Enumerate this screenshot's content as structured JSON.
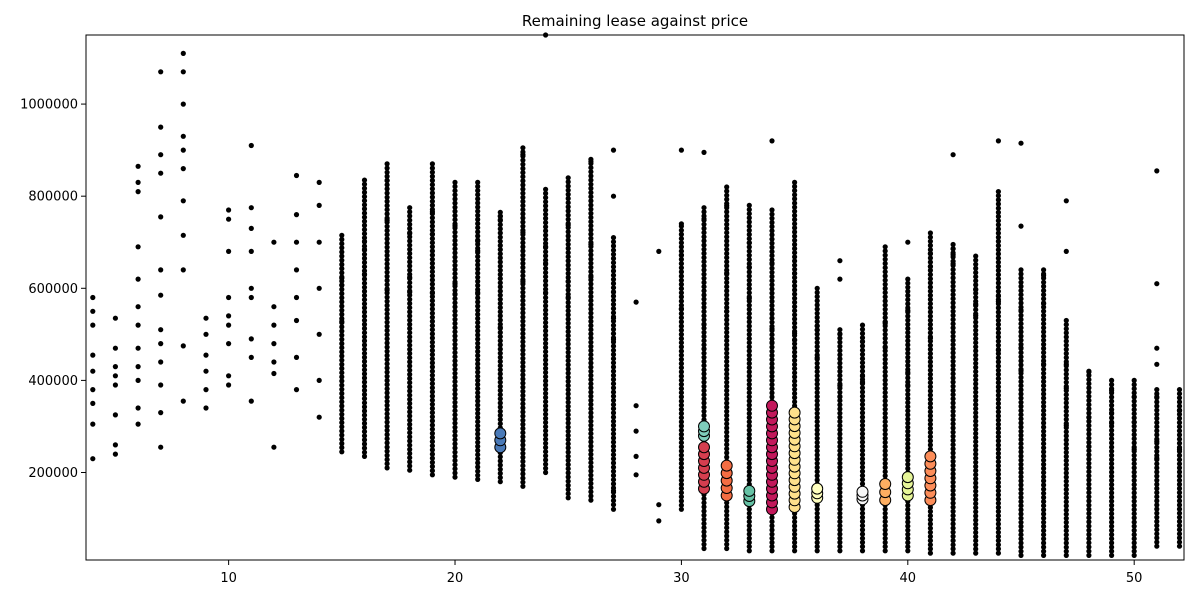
{
  "chart_data": {
    "type": "scatter",
    "title": "Remaining lease against price",
    "xlabel": "",
    "ylabel": "",
    "xlim": [
      3.7,
      52.2
    ],
    "ylim": [
      10000,
      1150000
    ],
    "x_ticks": [
      10,
      20,
      30,
      40,
      50
    ],
    "y_ticks": [
      200000,
      400000,
      600000,
      800000,
      1000000
    ],
    "x_tick_labels": [
      "10",
      "20",
      "30",
      "40",
      "50"
    ],
    "y_tick_labels": [
      "200000",
      "400000",
      "600000",
      "800000",
      "1000000"
    ],
    "grid": false,
    "legend": "none",
    "point_color": "#000000",
    "series": [
      {
        "points": [
          [
            4,
            230000
          ],
          [
            4,
            305000
          ],
          [
            4,
            350000
          ],
          [
            4,
            380000
          ],
          [
            4,
            420000
          ],
          [
            4,
            455000
          ],
          [
            4,
            520000
          ],
          [
            4,
            550000
          ],
          [
            4,
            580000
          ],
          [
            5,
            240000
          ],
          [
            5,
            260000
          ],
          [
            5,
            325000
          ],
          [
            5,
            390000
          ],
          [
            5,
            410000
          ],
          [
            5,
            430000
          ],
          [
            5,
            470000
          ],
          [
            5,
            535000
          ],
          [
            6,
            305000
          ],
          [
            6,
            340000
          ],
          [
            6,
            400000
          ],
          [
            6,
            430000
          ],
          [
            6,
            470000
          ],
          [
            6,
            520000
          ],
          [
            6,
            560000
          ],
          [
            6,
            620000
          ],
          [
            6,
            690000
          ],
          [
            6,
            810000
          ],
          [
            6,
            830000
          ],
          [
            6,
            865000
          ],
          [
            7,
            255000
          ],
          [
            7,
            330000
          ],
          [
            7,
            390000
          ],
          [
            7,
            440000
          ],
          [
            7,
            480000
          ],
          [
            7,
            510000
          ],
          [
            7,
            585000
          ],
          [
            7,
            640000
          ],
          [
            7,
            755000
          ],
          [
            7,
            850000
          ],
          [
            7,
            890000
          ],
          [
            7,
            950000
          ],
          [
            7,
            1070000
          ],
          [
            8,
            355000
          ],
          [
            8,
            475000
          ],
          [
            8,
            640000
          ],
          [
            8,
            715000
          ],
          [
            8,
            790000
          ],
          [
            8,
            860000
          ],
          [
            8,
            900000
          ],
          [
            8,
            930000
          ],
          [
            8,
            1000000
          ],
          [
            8,
            1070000
          ],
          [
            8,
            1110000
          ],
          [
            9,
            340000
          ],
          [
            9,
            380000
          ],
          [
            9,
            420000
          ],
          [
            9,
            455000
          ],
          [
            9,
            500000
          ],
          [
            9,
            535000
          ],
          [
            10,
            390000
          ],
          [
            10,
            410000
          ],
          [
            10,
            480000
          ],
          [
            10,
            520000
          ],
          [
            10,
            540000
          ],
          [
            10,
            580000
          ],
          [
            10,
            680000
          ],
          [
            10,
            750000
          ],
          [
            10,
            770000
          ],
          [
            11,
            355000
          ],
          [
            11,
            450000
          ],
          [
            11,
            490000
          ],
          [
            11,
            580000
          ],
          [
            11,
            600000
          ],
          [
            11,
            680000
          ],
          [
            11,
            730000
          ],
          [
            11,
            775000
          ],
          [
            11,
            910000
          ],
          [
            12,
            255000
          ],
          [
            12,
            415000
          ],
          [
            12,
            440000
          ],
          [
            12,
            480000
          ],
          [
            12,
            520000
          ],
          [
            12,
            560000
          ],
          [
            12,
            700000
          ],
          [
            13,
            380000
          ],
          [
            13,
            450000
          ],
          [
            13,
            530000
          ],
          [
            13,
            580000
          ],
          [
            13,
            640000
          ],
          [
            13,
            700000
          ],
          [
            13,
            760000
          ],
          [
            13,
            845000
          ],
          [
            14,
            320000
          ],
          [
            14,
            400000
          ],
          [
            14,
            500000
          ],
          [
            14,
            600000
          ],
          [
            14,
            700000
          ],
          [
            14,
            780000
          ],
          [
            14,
            830000
          ],
          [
            22,
            260000
          ],
          [
            22,
            280000
          ],
          [
            24,
            1150000
          ],
          [
            27,
            120000
          ],
          [
            27,
            160000
          ],
          [
            27,
            800000
          ],
          [
            27,
            900000
          ],
          [
            28,
            195000
          ],
          [
            28,
            235000
          ],
          [
            28,
            290000
          ],
          [
            28,
            345000
          ],
          [
            28,
            570000
          ],
          [
            29,
            95000
          ],
          [
            29,
            130000
          ],
          [
            29,
            680000
          ],
          [
            30,
            740000
          ],
          [
            30,
            900000
          ],
          [
            31,
            895000
          ],
          [
            34,
            920000
          ],
          [
            37,
            620000
          ],
          [
            37,
            660000
          ],
          [
            40,
            700000
          ],
          [
            42,
            890000
          ],
          [
            44,
            920000
          ],
          [
            45,
            915000
          ],
          [
            45,
            735000
          ],
          [
            47,
            790000
          ],
          [
            47,
            680000
          ],
          [
            51,
            855000
          ],
          [
            51,
            610000
          ],
          [
            51,
            470000
          ],
          [
            51,
            435000
          ]
        ]
      }
    ],
    "columns": [
      {
        "x": 15,
        "min": 245000,
        "max": 715000
      },
      {
        "x": 16,
        "min": 235000,
        "max": 835000
      },
      {
        "x": 17,
        "min": 210000,
        "max": 870000
      },
      {
        "x": 18,
        "min": 205000,
        "max": 775000
      },
      {
        "x": 19,
        "min": 195000,
        "max": 870000
      },
      {
        "x": 20,
        "min": 190000,
        "max": 830000
      },
      {
        "x": 21,
        "min": 185000,
        "max": 830000
      },
      {
        "x": 22,
        "min": 180000,
        "max": 765000
      },
      {
        "x": 23,
        "min": 170000,
        "max": 905000
      },
      {
        "x": 24,
        "min": 200000,
        "max": 815000
      },
      {
        "x": 25,
        "min": 145000,
        "max": 840000
      },
      {
        "x": 26,
        "min": 140000,
        "max": 880000
      },
      {
        "x": 27,
        "min": 130000,
        "max": 710000
      },
      {
        "x": 30,
        "min": 120000,
        "max": 735000
      },
      {
        "x": 31,
        "min": 35000,
        "max": 775000
      },
      {
        "x": 32,
        "min": 35000,
        "max": 820000
      },
      {
        "x": 33,
        "min": 30000,
        "max": 780000
      },
      {
        "x": 34,
        "min": 30000,
        "max": 770000
      },
      {
        "x": 35,
        "min": 30000,
        "max": 830000
      },
      {
        "x": 36,
        "min": 30000,
        "max": 600000
      },
      {
        "x": 37,
        "min": 30000,
        "max": 510000
      },
      {
        "x": 38,
        "min": 30000,
        "max": 520000
      },
      {
        "x": 39,
        "min": 30000,
        "max": 690000
      },
      {
        "x": 40,
        "min": 30000,
        "max": 620000
      },
      {
        "x": 41,
        "min": 25000,
        "max": 720000
      },
      {
        "x": 42,
        "min": 25000,
        "max": 695000
      },
      {
        "x": 43,
        "min": 25000,
        "max": 670000
      },
      {
        "x": 44,
        "min": 25000,
        "max": 810000
      },
      {
        "x": 45,
        "min": 20000,
        "max": 640000
      },
      {
        "x": 46,
        "min": 20000,
        "max": 640000
      },
      {
        "x": 47,
        "min": 20000,
        "max": 530000
      },
      {
        "x": 48,
        "min": 20000,
        "max": 420000
      },
      {
        "x": 49,
        "min": 20000,
        "max": 400000
      },
      {
        "x": 50,
        "min": 20000,
        "max": 400000
      },
      {
        "x": 51,
        "min": 40000,
        "max": 380000
      },
      {
        "x": 52,
        "min": 40000,
        "max": 380000
      }
    ],
    "highlight_clusters": [
      {
        "x": 22,
        "min": 255000,
        "max": 285000,
        "color": "#4a7ab8"
      },
      {
        "x": 31,
        "min": 165000,
        "max": 255000,
        "color": "#d53e4f"
      },
      {
        "x": 31,
        "min": 280000,
        "max": 300000,
        "color": "#7fcdbb"
      },
      {
        "x": 32,
        "min": 150000,
        "max": 215000,
        "color": "#f46d43"
      },
      {
        "x": 33,
        "min": 138000,
        "max": 160000,
        "color": "#66c2a5"
      },
      {
        "x": 34,
        "min": 120000,
        "max": 345000,
        "color": "#c2185b"
      },
      {
        "x": 35,
        "min": 125000,
        "max": 330000,
        "color": "#fee08b"
      },
      {
        "x": 36,
        "min": 145000,
        "max": 165000,
        "color": "#ffffbf"
      },
      {
        "x": 38,
        "min": 142000,
        "max": 158000,
        "color": "#f7f7f7"
      },
      {
        "x": 39,
        "min": 140000,
        "max": 175000,
        "color": "#fdae61"
      },
      {
        "x": 40,
        "min": 150000,
        "max": 190000,
        "color": "#e6f598"
      },
      {
        "x": 41,
        "min": 140000,
        "max": 235000,
        "color": "#fc8d59"
      }
    ]
  }
}
